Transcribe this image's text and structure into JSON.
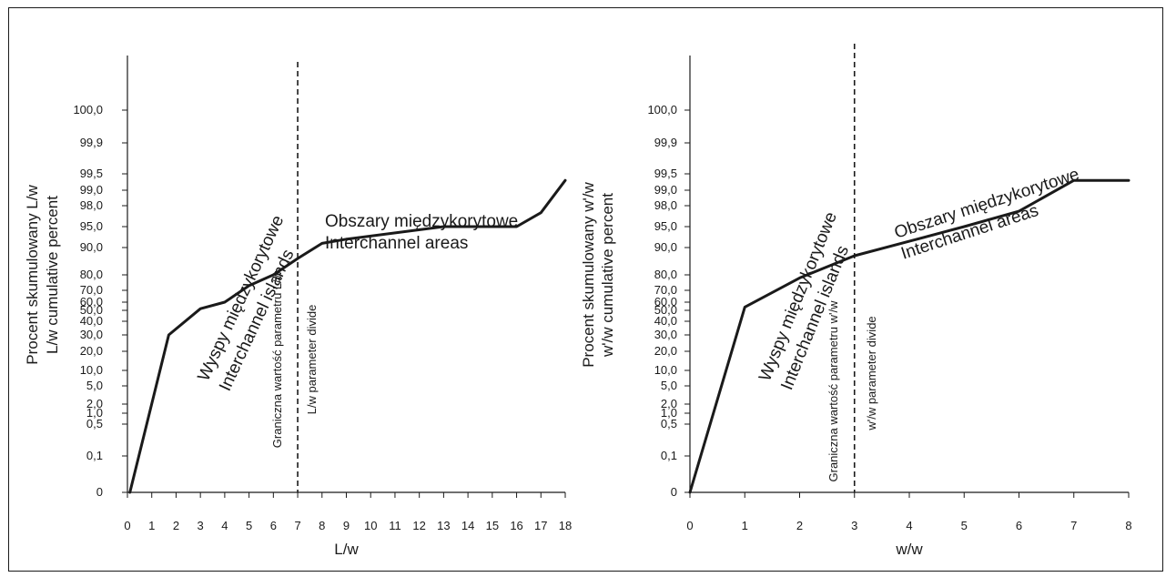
{
  "chart_data": [
    {
      "type": "line",
      "xlabel": "L/w",
      "ylabel_lines": [
        "Procent skumulowany L/w",
        "L/w cumulative percent"
      ],
      "y_scale": "probability",
      "x_ticks": [
        0,
        1,
        2,
        3,
        4,
        5,
        6,
        7,
        8,
        9,
        10,
        11,
        12,
        13,
        14,
        15,
        16,
        17,
        18
      ],
      "xlim": [
        0,
        18
      ],
      "y_tick_labels": [
        "0",
        "0,1",
        "0,5",
        "1,0",
        "2,0",
        "5,0",
        "10,0",
        "20,0",
        "30,0",
        "40,0",
        "50,0",
        "60,0",
        "70,0",
        "80,0",
        "90,0",
        "95,0",
        "98,0",
        "99,0",
        "99,5",
        "99,9",
        "100,0"
      ],
      "series": [
        {
          "x": [
            0.1,
            1.7,
            3.0,
            4.0,
            5.0,
            6.0,
            7.0,
            8.0,
            9.0,
            13.0,
            14.0,
            15.0,
            16.0,
            17.0,
            18.0
          ],
          "y_percent": [
            0,
            30.0,
            52.0,
            60.0,
            73.0,
            80.0,
            86.0,
            91.0,
            92.0,
            95.0,
            95.0,
            95.0,
            95.0,
            97.0,
            99.3
          ]
        }
      ],
      "divider_x": 7,
      "divider_label_lines": [
        "Graniczna wartość parametru L/w",
        "L/w parameter divide"
      ],
      "left_region_lines": [
        "Wyspy międzykorytowe",
        "Interchannel islands"
      ],
      "right_region_lines": [
        "Obszary międzykorytowe",
        "Interchannel areas"
      ]
    },
    {
      "type": "line",
      "xlabel": "w/w",
      "ylabel_lines": [
        "Procent skumulowany w'/w",
        "w'/w cumulative percent"
      ],
      "y_scale": "probability",
      "x_ticks": [
        0,
        1,
        2,
        3,
        4,
        5,
        6,
        7,
        8
      ],
      "xlim": [
        0,
        8
      ],
      "y_tick_labels": [
        "0",
        "0,1",
        "0,5",
        "1,0",
        "2,0",
        "5,0",
        "10,0",
        "20,0",
        "30,0",
        "40,0",
        "50,0",
        "60,0",
        "70,0",
        "80,0",
        "90,0",
        "95,0",
        "98,0",
        "99,0",
        "99,5",
        "99,9",
        "100,0"
      ],
      "series": [
        {
          "x": [
            0.0,
            1.0,
            2.0,
            3.0,
            4.0,
            5.0,
            6.0,
            7.0,
            8.0
          ],
          "y_percent": [
            0,
            54.0,
            78.0,
            87.0,
            91.5,
            95.0,
            97.2,
            99.3,
            99.3
          ]
        }
      ],
      "divider_x": 3,
      "divider_label_lines": [
        "Graniczna wartość parametru w'/w",
        "w'/w parameter divide"
      ],
      "left_region_lines": [
        "Wyspy międzykorytowe",
        "Interchannel islands"
      ],
      "right_region_lines": [
        "Obszary międzykorytowe",
        "Interchannel areas"
      ]
    }
  ]
}
